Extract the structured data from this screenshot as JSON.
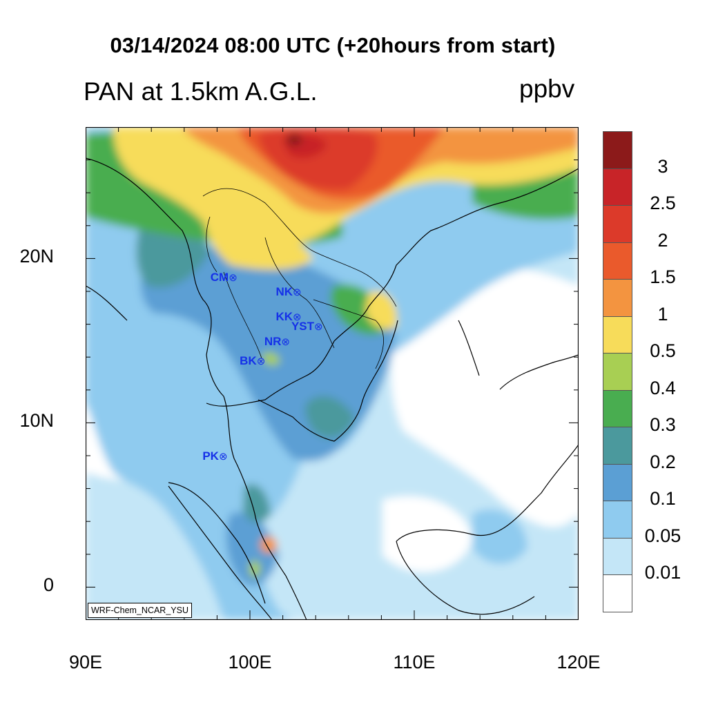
{
  "title": "03/14/2024 08:00 UTC (+20hours from start)",
  "subtitle": "PAN at 1.5km A.G.L.",
  "units": "ppbv",
  "credit": "WRF-Chem_NCAR_YSU",
  "x_axis": {
    "ticks": [
      {
        "label": "90E",
        "lon": 90
      },
      {
        "label": "100E",
        "lon": 100
      },
      {
        "label": "110E",
        "lon": 110
      },
      {
        "label": "120E",
        "lon": 120
      }
    ]
  },
  "y_axis": {
    "ticks": [
      {
        "label": "20N",
        "lat": 20
      },
      {
        "label": "10N",
        "lat": 10
      },
      {
        "label": "0",
        "lat": 0
      }
    ]
  },
  "map_extent": {
    "lon": [
      90,
      120
    ],
    "lat": [
      -2,
      28
    ]
  },
  "legend": {
    "colors": [
      "#8c1a1a",
      "#c82428",
      "#dc3a2a",
      "#ea5a2c",
      "#f39440",
      "#f7dc5a",
      "#a8cf53",
      "#49ad50",
      "#4b999d",
      "#5b9fd4",
      "#8fcbef",
      "#c4e6f7",
      "#ffffff"
    ],
    "labels": [
      "3",
      "2.5",
      "2",
      "1.5",
      "1",
      "0.5",
      "0.4",
      "0.3",
      "0.2",
      "0.1",
      "0.05",
      "0.01"
    ]
  },
  "stations": [
    {
      "label": "CM",
      "lon": 98.9,
      "lat": 18.8
    },
    {
      "label": "NK",
      "lon": 102.8,
      "lat": 17.9
    },
    {
      "label": "KK",
      "lon": 102.8,
      "lat": 16.4
    },
    {
      "label": "YST",
      "lon": 104.1,
      "lat": 15.8
    },
    {
      "label": "NR",
      "lon": 102.1,
      "lat": 14.9
    },
    {
      "label": "BK",
      "lon": 100.6,
      "lat": 13.7
    },
    {
      "label": "PK",
      "lon": 98.3,
      "lat": 7.9
    }
  ]
}
